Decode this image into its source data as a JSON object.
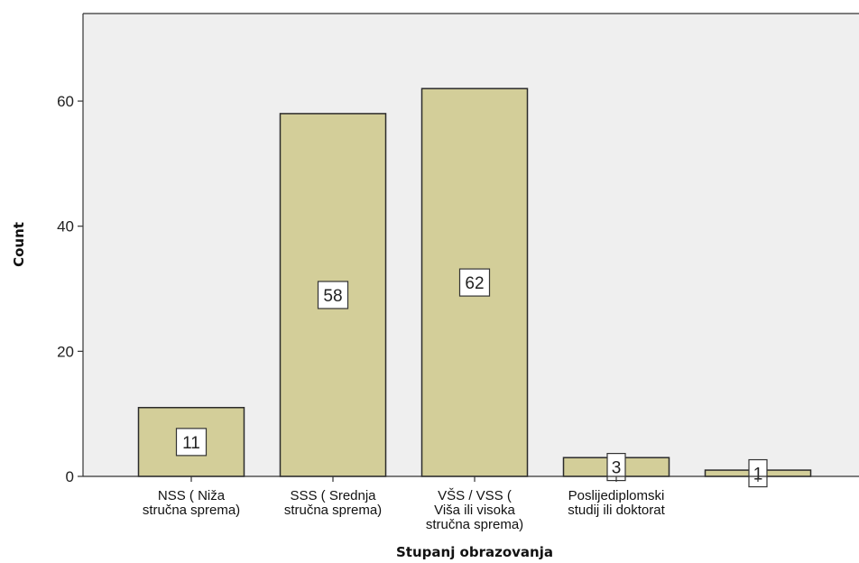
{
  "chart_data": {
    "type": "bar",
    "title": "",
    "xlabel": "Stupanj obrazovanja",
    "ylabel": "Count",
    "ylim": [
      0,
      74
    ],
    "yticks": [
      0,
      20,
      40,
      60
    ],
    "grid": false,
    "categories": [
      [
        "NSS ( Niža",
        "stručna sprema)"
      ],
      [
        "SSS ( Srednja",
        "stručna sprema)"
      ],
      [
        "VŠS / VSS (",
        "Viša ili visoka",
        "stručna sprema)"
      ],
      [
        "Poslijediplomski",
        "studij ili doktorat"
      ],
      [
        ""
      ]
    ],
    "values": [
      11,
      58,
      62,
      3,
      1
    ],
    "data_labels": [
      "11",
      "58",
      "62",
      "3",
      "1"
    ],
    "colors": {
      "bar_fill": "#d3ce99",
      "bar_stroke": "#2b2b2b",
      "plot_bg": "#efefef",
      "axis": "#333333"
    }
  }
}
